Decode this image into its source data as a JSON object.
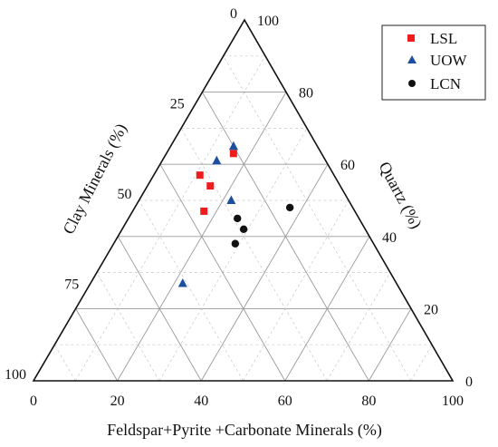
{
  "chart_data": {
    "type": "scatter",
    "subtype": "ternary",
    "grid": true,
    "legend_position": "top-right",
    "axes": {
      "bottom": {
        "label": "Feldspar+Pyrite +Carbonate Minerals (%)",
        "ticks": [
          "0",
          "20",
          "40",
          "60",
          "80",
          "100"
        ]
      },
      "right": {
        "label": "Quartz (%)",
        "ticks": [
          "0",
          "20",
          "40",
          "60",
          "80",
          "100"
        ]
      },
      "left": {
        "label": "Clay Minerals (%)",
        "ticks": [
          "0",
          "25",
          "50",
          "75",
          "100"
        ]
      }
    },
    "series": [
      {
        "name": "LSL",
        "marker": "square",
        "color": "#ee1c1c",
        "points": [
          {
            "quartz": 63,
            "feldspar_pyrite_carbonate": 16,
            "clay": 21
          },
          {
            "quartz": 57,
            "feldspar_pyrite_carbonate": 11,
            "clay": 32
          },
          {
            "quartz": 54,
            "feldspar_pyrite_carbonate": 15,
            "clay": 31
          },
          {
            "quartz": 47,
            "feldspar_pyrite_carbonate": 17,
            "clay": 36
          }
        ]
      },
      {
        "name": "UOW",
        "marker": "triangle",
        "color": "#1c4fa0",
        "points": [
          {
            "quartz": 65,
            "feldspar_pyrite_carbonate": 15,
            "clay": 20
          },
          {
            "quartz": 61,
            "feldspar_pyrite_carbonate": 13,
            "clay": 26
          },
          {
            "quartz": 50,
            "feldspar_pyrite_carbonate": 22,
            "clay": 28
          },
          {
            "quartz": 27,
            "feldspar_pyrite_carbonate": 22,
            "clay": 51
          }
        ]
      },
      {
        "name": "LCN",
        "marker": "circle",
        "color": "#111111",
        "points": [
          {
            "quartz": 48,
            "feldspar_pyrite_carbonate": 37,
            "clay": 15
          },
          {
            "quartz": 45,
            "feldspar_pyrite_carbonate": 26,
            "clay": 29
          },
          {
            "quartz": 42,
            "feldspar_pyrite_carbonate": 29,
            "clay": 29
          },
          {
            "quartz": 38,
            "feldspar_pyrite_carbonate": 29,
            "clay": 33
          }
        ]
      }
    ]
  }
}
